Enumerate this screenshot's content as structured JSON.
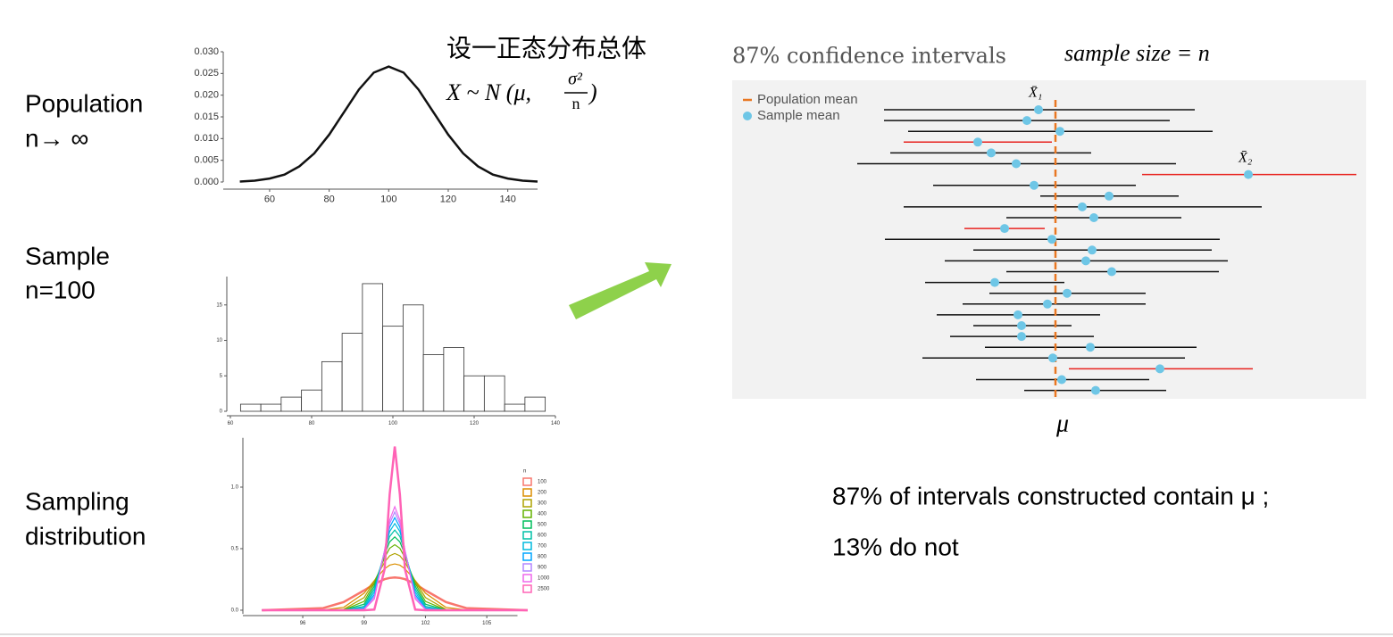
{
  "labels": {
    "population": "Population",
    "population_n": "n→ ∞",
    "sample": "Sample",
    "sample_n": "n=100",
    "sampling": "Sampling",
    "distribution": "distribution",
    "cn_title": "设一正态分布总体",
    "formula_left": "X ~ N (μ,",
    "formula_num": "σ²",
    "formula_den": "n",
    "formula_right": ")",
    "conclusion_1": "87% of intervals constructed contain μ ;",
    "conclusion_2": "13% do not"
  },
  "chart_data": [
    {
      "type": "line",
      "x": [
        50,
        55,
        60,
        65,
        70,
        75,
        80,
        85,
        90,
        95,
        100,
        105,
        110,
        115,
        120,
        125,
        130,
        135,
        140,
        145,
        150
      ],
      "values": [
        0.0001,
        0.0003,
        0.0008,
        0.0017,
        0.0036,
        0.0066,
        0.0109,
        0.0161,
        0.0213,
        0.0252,
        0.0266,
        0.0252,
        0.0213,
        0.0161,
        0.0109,
        0.0066,
        0.0036,
        0.0017,
        0.0008,
        0.0003,
        0.0001
      ],
      "color": "#111111",
      "xlim": [
        50,
        150
      ],
      "xticks": [
        60,
        80,
        100,
        120,
        140
      ],
      "ylim": [
        0,
        0.03
      ],
      "yticks": [
        {
          "value": 0,
          "label": "0.000"
        },
        {
          "value": 0.005,
          "label": "0.005"
        },
        {
          "value": 0.01,
          "label": "0.010"
        },
        {
          "value": 0.015,
          "label": "0.015"
        },
        {
          "value": 0.02,
          "label": "0.020"
        },
        {
          "value": 0.025,
          "label": "0.025"
        },
        {
          "value": 0.03,
          "label": "0.030"
        }
      ]
    },
    {
      "type": "histogram",
      "bins": [
        62.5,
        67.5,
        72.5,
        77.5,
        82.5,
        87.5,
        92.5,
        97.5,
        102.5,
        107.5,
        112.5,
        117.5,
        122.5,
        127.5,
        132.5,
        137.5
      ],
      "counts": [
        1,
        1,
        2,
        3,
        7,
        11,
        18,
        12,
        15,
        8,
        9,
        5,
        5,
        1,
        2
      ],
      "color": "#ffffff",
      "xlim": [
        60,
        140
      ],
      "xticks": [
        60,
        80,
        100,
        120,
        140
      ],
      "ylim": [
        0,
        19
      ],
      "yticks": [
        0,
        5,
        10,
        15
      ]
    },
    {
      "type": "line",
      "legend_title": "n",
      "x": [
        94,
        97,
        98,
        99,
        99.5,
        100,
        100.25,
        100.5,
        100.75,
        101,
        101.5,
        102,
        103,
        104,
        107
      ],
      "series": [
        {
          "name": "100",
          "color": "#f8766d",
          "values": [
            0,
            0.017,
            0.066,
            0.161,
            0.213,
            0.252,
            0.262,
            0.266,
            0.262,
            0.252,
            0.213,
            0.161,
            0.066,
            0.017,
            0
          ]
        },
        {
          "name": "200",
          "color": "#db8e00",
          "values": [
            0,
            0.002,
            0.023,
            0.138,
            0.241,
            0.336,
            0.366,
            0.376,
            0.366,
            0.336,
            0.241,
            0.138,
            0.023,
            0.002,
            0
          ]
        },
        {
          "name": "300",
          "color": "#aea200",
          "values": [
            0,
            0,
            0.007,
            0.103,
            0.237,
            0.39,
            0.442,
            0.461,
            0.442,
            0.39,
            0.237,
            0.103,
            0.007,
            0,
            0
          ]
        },
        {
          "name": "400",
          "color": "#64b200",
          "values": [
            0,
            0,
            0.002,
            0.072,
            0.219,
            0.426,
            0.503,
            0.532,
            0.503,
            0.426,
            0.219,
            0.072,
            0.002,
            0,
            0
          ]
        },
        {
          "name": "500",
          "color": "#00bd5c",
          "values": [
            0,
            0,
            0.001,
            0.049,
            0.196,
            0.451,
            0.555,
            0.595,
            0.555,
            0.451,
            0.196,
            0.049,
            0.001,
            0,
            0
          ]
        },
        {
          "name": "600",
          "color": "#00c1a7",
          "values": [
            0,
            0,
            0,
            0.032,
            0.172,
            0.467,
            0.599,
            0.651,
            0.599,
            0.467,
            0.172,
            0.032,
            0,
            0,
            0
          ]
        },
        {
          "name": "700",
          "color": "#00bade",
          "values": [
            0,
            0,
            0,
            0.021,
            0.149,
            0.477,
            0.639,
            0.704,
            0.639,
            0.477,
            0.149,
            0.021,
            0,
            0,
            0
          ]
        },
        {
          "name": "800",
          "color": "#00a6ff",
          "values": [
            0,
            0,
            0,
            0.014,
            0.127,
            0.482,
            0.673,
            0.752,
            0.673,
            0.482,
            0.127,
            0.014,
            0,
            0,
            0
          ]
        },
        {
          "name": "900",
          "color": "#b385ff",
          "values": [
            0,
            0,
            0,
            0.009,
            0.108,
            0.484,
            0.704,
            0.798,
            0.704,
            0.484,
            0.108,
            0.009,
            0,
            0,
            0
          ]
        },
        {
          "name": "1000",
          "color": "#ef67eb",
          "values": [
            0,
            0,
            0,
            0.006,
            0.091,
            0.483,
            0.732,
            0.841,
            0.732,
            0.483,
            0.091,
            0.006,
            0,
            0,
            0
          ]
        },
        {
          "name": "2500",
          "color": "#ff63b6",
          "values": [
            0,
            0,
            0,
            0,
            0.005,
            0.331,
            0.94,
            1.33,
            0.94,
            0.331,
            0.005,
            0,
            0,
            0,
            0
          ]
        }
      ],
      "xlim": [
        93.5,
        106.5
      ],
      "xticks": [
        96,
        99,
        102,
        105
      ],
      "ylim": [
        -0.03,
        1.4
      ],
      "yticks": [
        {
          "value": 0,
          "label": "0.0"
        },
        {
          "value": 0.5,
          "label": "0.5"
        },
        {
          "value": 1,
          "label": "1.0"
        }
      ]
    },
    {
      "type": "interval",
      "title": "87% confidence intervals",
      "subtitle": "sample size = n",
      "legend": [
        "Population mean",
        "Sample mean"
      ],
      "population_mean": 0,
      "population_mean_label": "μ",
      "annotations": [
        {
          "text": "X̄₁",
          "row": 0
        },
        {
          "text": "X̄₂",
          "row": 6
        }
      ],
      "hit_color": "#111111",
      "miss_color": "#e8231f",
      "mean_color": "#e87722",
      "dot_color": "#6ec6e6",
      "xlim": [
        -36.2,
        34.8
      ],
      "intervals": [
        {
          "low": -19.2,
          "high": 15.6,
          "mean": -1.9
        },
        {
          "low": -19.2,
          "high": 12.8,
          "mean": -3.2
        },
        {
          "low": -16.5,
          "high": 17.6,
          "mean": 0.5
        },
        {
          "low": -17.0,
          "high": -0.4,
          "mean": -8.7
        },
        {
          "low": -18.5,
          "high": 4.0,
          "mean": -7.2
        },
        {
          "low": -22.2,
          "high": 13.5,
          "mean": -4.4
        },
        {
          "low": 9.7,
          "high": 33.7,
          "mean": 21.6
        },
        {
          "low": -13.7,
          "high": 9.0,
          "mean": -2.4
        },
        {
          "low": -1.7,
          "high": 13.8,
          "mean": 6.0
        },
        {
          "low": -17.0,
          "high": 23.1,
          "mean": 3.0
        },
        {
          "low": -5.5,
          "high": 14.1,
          "mean": 4.3
        },
        {
          "low": -10.2,
          "high": -1.2,
          "mean": -5.7
        },
        {
          "low": -19.1,
          "high": 18.4,
          "mean": -0.4
        },
        {
          "low": -9.2,
          "high": 17.5,
          "mean": 4.1
        },
        {
          "low": -12.4,
          "high": 19.3,
          "mean": 3.4
        },
        {
          "low": -5.5,
          "high": 18.3,
          "mean": 6.3
        },
        {
          "low": -14.6,
          "high": 1.0,
          "mean": -6.8
        },
        {
          "low": -7.4,
          "high": 10.1,
          "mean": 1.3
        },
        {
          "low": -10.4,
          "high": 10.1,
          "mean": -0.9
        },
        {
          "low": -13.3,
          "high": 5.0,
          "mean": -4.2
        },
        {
          "low": -9.2,
          "high": 1.8,
          "mean": -3.8
        },
        {
          "low": -11.8,
          "high": 4.3,
          "mean": -3.8
        },
        {
          "low": -7.9,
          "high": 15.8,
          "mean": 3.9
        },
        {
          "low": -14.9,
          "high": 14.5,
          "mean": -0.3
        },
        {
          "low": 1.5,
          "high": 22.1,
          "mean": 11.7
        },
        {
          "low": -8.9,
          "high": 10.5,
          "mean": 0.7
        },
        {
          "low": -3.5,
          "high": 12.4,
          "mean": 4.5
        }
      ]
    }
  ]
}
